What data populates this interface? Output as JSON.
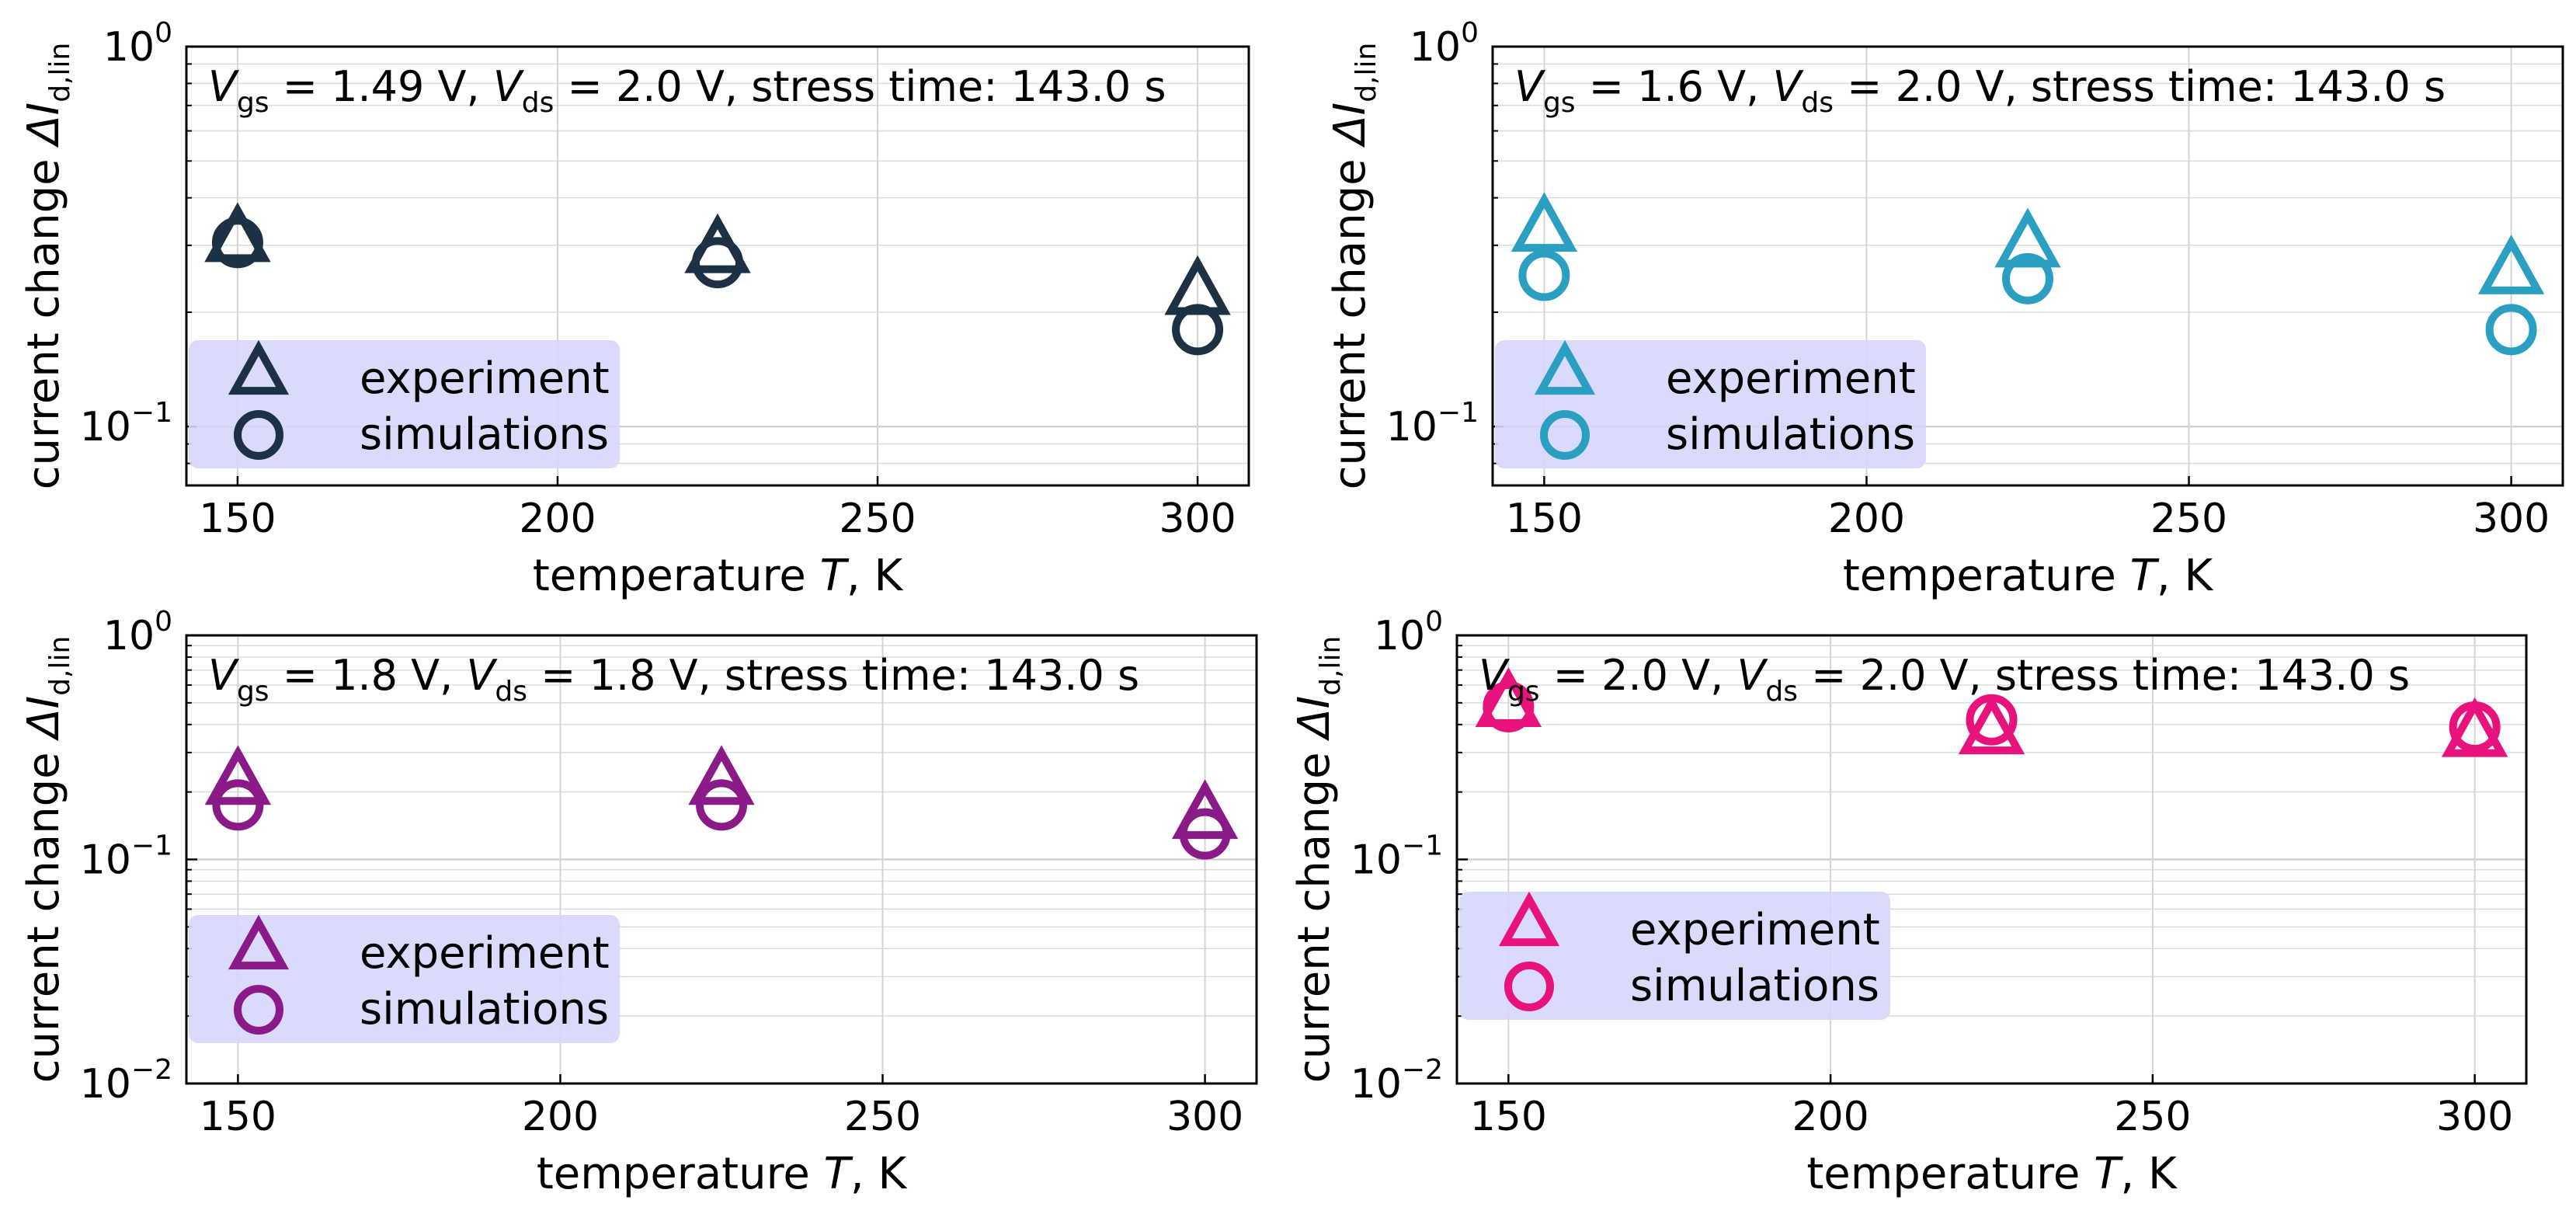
{
  "chart_data": [
    {
      "type": "scatter",
      "title": "V_gs = 1.49 V, V_ds = 2.0 V, stress time: 143.0 s",
      "title_parts": [
        "V",
        "gs",
        " = 1.49 V, ",
        "V",
        "ds",
        " = 2.0 V, stress time: 143.0 s"
      ],
      "xlabel_parts": [
        "temperature ",
        "T",
        ", K"
      ],
      "ylabel_parts": [
        "current change ",
        "ΔI",
        "d,lin"
      ],
      "color": "#1c3144",
      "xscale": "linear",
      "yscale": "log",
      "xlim": [
        142,
        308
      ],
      "ylim": [
        0.07,
        1.0
      ],
      "xticks": [
        150,
        200,
        250,
        300
      ],
      "yticks": [
        {
          "value": 1.0,
          "base": "10",
          "exp": "0"
        },
        {
          "value": 0.1,
          "base": "10",
          "exp": "−1"
        }
      ],
      "legend_loc": "lower-left",
      "legend_bg": "#d6d6fb",
      "series": [
        {
          "name": "experiment",
          "marker": "triangle",
          "x": [
            150,
            225,
            300
          ],
          "y": [
            0.31,
            0.29,
            0.225
          ]
        },
        {
          "name": "simulations",
          "marker": "circle",
          "x": [
            150,
            225,
            300
          ],
          "y": [
            0.305,
            0.27,
            0.18
          ]
        }
      ]
    },
    {
      "type": "scatter",
      "title": "V_gs = 1.6 V, V_ds = 2.0 V, stress time: 143.0 s",
      "title_parts": [
        "V",
        "gs",
        " = 1.6 V, ",
        "V",
        "ds",
        " = 2.0 V, stress time: 143.0 s"
      ],
      "xlabel_parts": [
        "temperature ",
        "T",
        ", K"
      ],
      "ylabel_parts": [
        "current change ",
        "ΔI",
        "d,lin"
      ],
      "color": "#2b9fc2",
      "xscale": "linear",
      "yscale": "log",
      "xlim": [
        142,
        308
      ],
      "ylim": [
        0.07,
        1.0
      ],
      "xticks": [
        150,
        200,
        250,
        300
      ],
      "yticks": [
        {
          "value": 1.0,
          "base": "10",
          "exp": "0"
        },
        {
          "value": 0.1,
          "base": "10",
          "exp": "−1"
        }
      ],
      "legend_loc": "lower-left",
      "legend_bg": "#d6d6fb",
      "series": [
        {
          "name": "experiment",
          "marker": "triangle",
          "x": [
            150,
            225,
            300
          ],
          "y": [
            0.33,
            0.3,
            0.255
          ]
        },
        {
          "name": "simulations",
          "marker": "circle",
          "x": [
            150,
            225,
            300
          ],
          "y": [
            0.25,
            0.245,
            0.18
          ]
        }
      ]
    },
    {
      "type": "scatter",
      "title": "V_gs = 1.8 V, V_ds = 1.8 V, stress time: 143.0 s",
      "title_parts": [
        "V",
        "gs",
        " = 1.8 V, ",
        "V",
        "ds",
        " = 1.8 V, stress time: 143.0 s"
      ],
      "xlabel_parts": [
        "temperature ",
        "T",
        ", K"
      ],
      "ylabel_parts": [
        "current change ",
        "ΔI",
        "d,lin"
      ],
      "color": "#8b1a89",
      "xscale": "linear",
      "yscale": "log",
      "xlim": [
        142,
        308
      ],
      "ylim": [
        0.01,
        1.0
      ],
      "xticks": [
        150,
        200,
        250,
        300
      ],
      "yticks": [
        {
          "value": 1.0,
          "base": "10",
          "exp": "0"
        },
        {
          "value": 0.1,
          "base": "10",
          "exp": "−1"
        },
        {
          "value": 0.01,
          "base": "10",
          "exp": "−2"
        }
      ],
      "legend_loc": "lower-left",
      "legend_bg": "#d6d6fb",
      "series": [
        {
          "name": "experiment",
          "marker": "triangle",
          "x": [
            150,
            225,
            300
          ],
          "y": [
            0.22,
            0.22,
            0.155
          ]
        },
        {
          "name": "simulations",
          "marker": "circle",
          "x": [
            150,
            225,
            300
          ],
          "y": [
            0.175,
            0.175,
            0.13
          ]
        }
      ]
    },
    {
      "type": "scatter",
      "title": "V_gs = 2.0 V, V_ds = 2.0 V, stress time: 143.0 s",
      "title_parts": [
        "V",
        "gs",
        " = 2.0 V, ",
        "V",
        "ds",
        " = 2.0 V, stress time: 143.0 s"
      ],
      "xlabel_parts": [
        "temperature ",
        "T",
        ", K"
      ],
      "ylabel_parts": [
        "current change ",
        "ΔI",
        "d,lin"
      ],
      "color": "#e8127c",
      "xscale": "linear",
      "yscale": "log",
      "xlim": [
        142,
        308
      ],
      "ylim": [
        0.01,
        1.0
      ],
      "xticks": [
        150,
        200,
        250,
        300
      ],
      "yticks": [
        {
          "value": 1.0,
          "base": "10",
          "exp": "0"
        },
        {
          "value": 0.1,
          "base": "10",
          "exp": "−1"
        },
        {
          "value": 0.01,
          "base": "10",
          "exp": "−2"
        }
      ],
      "legend_loc": "lower-left",
      "legend_bg": "#d6d6fb",
      "series": [
        {
          "name": "experiment",
          "marker": "triangle",
          "x": [
            150,
            225,
            300
          ],
          "y": [
            0.49,
            0.37,
            0.36
          ]
        },
        {
          "name": "simulations",
          "marker": "circle",
          "x": [
            150,
            225,
            300
          ],
          "y": [
            0.48,
            0.42,
            0.39
          ]
        }
      ]
    }
  ]
}
